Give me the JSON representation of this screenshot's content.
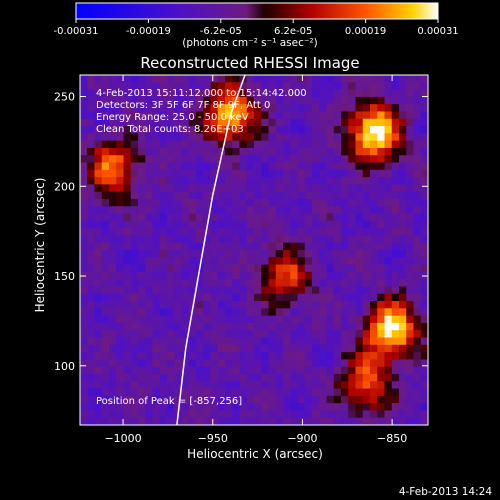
{
  "colorbar": {
    "ticks": [
      "-0.00031",
      "-0.00019",
      "-6.2e-05",
      "6.2e-05",
      "0.00019",
      "0.00031"
    ],
    "title": "(photons cm⁻² s⁻¹ asec⁻²)"
  },
  "title": "Reconstructed RHESSI Image",
  "info": {
    "time": "4-Feb-2013 15:11:12.000 to 15:14:42.000",
    "detectors": "Detectors: 3F 5F 6F 7F 8F 9F, Att 0",
    "energy": "Energy Range: 25.0 - 50.0 keV",
    "method": "Clean     Total counts: 8.26E+03"
  },
  "peak": "Position of Peak = [-857,256]",
  "footer": "4-Feb-2013 14:24",
  "chart_data": {
    "type": "heatmap",
    "title": "Reconstructed RHESSI Image",
    "xlabel": "Heliocentric X (arcsec)",
    "ylabel": "Heliocentric Y (arcsec)",
    "xlim": [
      -1024,
      -830
    ],
    "ylim": [
      67,
      262
    ],
    "xticks": [
      -1000,
      -950,
      -900,
      -850
    ],
    "yticks": [
      100,
      150,
      200,
      250
    ],
    "colorbar_range": [
      -0.00031,
      0.00031
    ],
    "colors": {
      "min": "#0000ff",
      "mid": "#5a1fa0",
      "high": "#ff4000",
      "max": "#ffffff"
    },
    "limb_curve": [
      [
        -970,
        67
      ],
      [
        -965,
        110
      ],
      [
        -958,
        150
      ],
      [
        -950,
        195
      ],
      [
        -940,
        240
      ],
      [
        -932,
        262
      ]
    ],
    "hotspots": [
      {
        "x": -860,
        "y": 230,
        "level": 0.9
      },
      {
        "x": -850,
        "y": 120,
        "level": 0.85
      },
      {
        "x": -940,
        "y": 240,
        "level": 0.75
      },
      {
        "x": -1005,
        "y": 210,
        "level": 0.6
      },
      {
        "x": -910,
        "y": 150,
        "level": 0.5
      },
      {
        "x": -865,
        "y": 90,
        "level": 0.55
      }
    ]
  }
}
